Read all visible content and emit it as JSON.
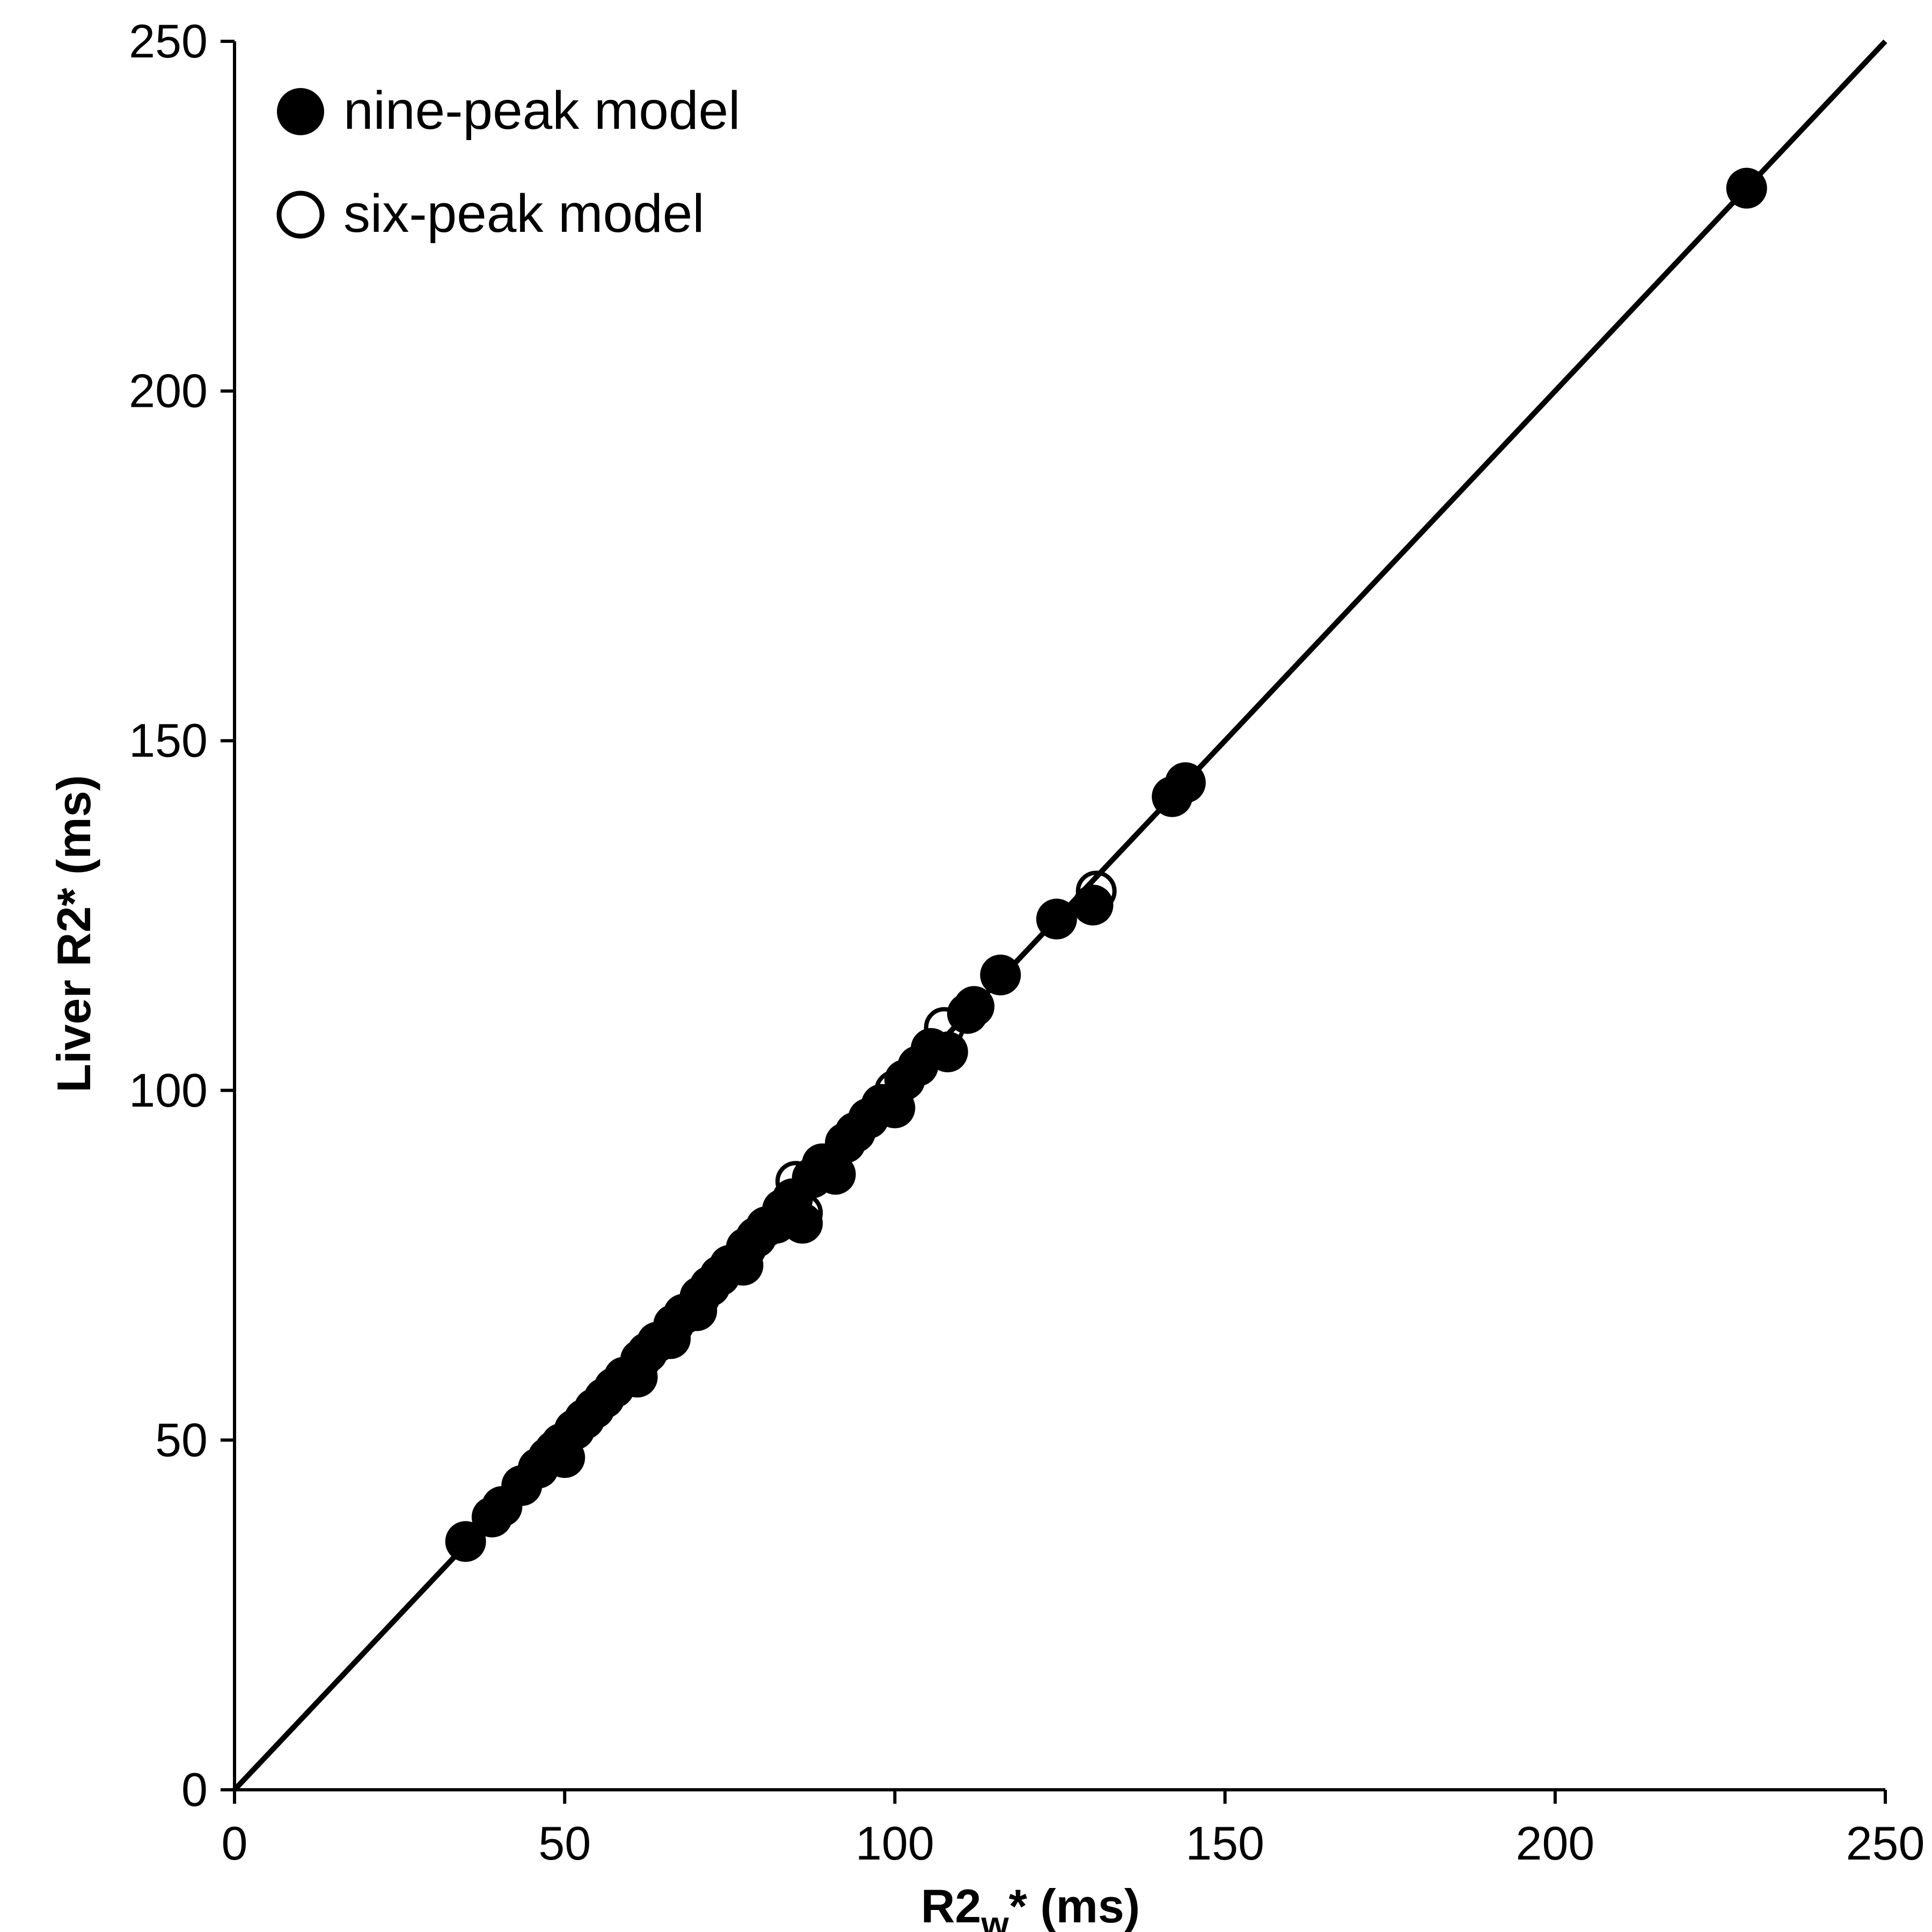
{
  "chart_data": {
    "type": "scatter",
    "title": "",
    "xlabel": {
      "main": "R2",
      "sub": "w",
      "rest": "* (ms)"
    },
    "ylabel": "Liver R2* (ms)",
    "xlim": [
      0,
      250
    ],
    "ylim": [
      0,
      250
    ],
    "xticks": [
      0,
      50,
      100,
      150,
      200,
      250
    ],
    "yticks": [
      0,
      50,
      100,
      150,
      200,
      250
    ],
    "grid": false,
    "legend_position": "top-left",
    "identity_line": true,
    "series": [
      {
        "name": "nine-peak model",
        "marker": "filled-circle",
        "color": "#000000",
        "points": [
          [
            35,
            35.5
          ],
          [
            39,
            39
          ],
          [
            40.5,
            40.5
          ],
          [
            43.5,
            43.5
          ],
          [
            46,
            46
          ],
          [
            47.5,
            47.5
          ],
          [
            48.5,
            48.5
          ],
          [
            49.5,
            49.5
          ],
          [
            50,
            47.5
          ],
          [
            51.5,
            51.5
          ],
          [
            53,
            53
          ],
          [
            54.5,
            54.5
          ],
          [
            56,
            56
          ],
          [
            57.5,
            57.5
          ],
          [
            59,
            59
          ],
          [
            61,
            59
          ],
          [
            61.5,
            61.5
          ],
          [
            62.5,
            62.5
          ],
          [
            64,
            64
          ],
          [
            66,
            64.5
          ],
          [
            66.5,
            66.5
          ],
          [
            68,
            68
          ],
          [
            70,
            68.5
          ],
          [
            70.5,
            70.5
          ],
          [
            72,
            72
          ],
          [
            73.5,
            73.5
          ],
          [
            75,
            75
          ],
          [
            77,
            75
          ],
          [
            77.5,
            77.5
          ],
          [
            79,
            79
          ],
          [
            80.5,
            80.5
          ],
          [
            82,
            81
          ],
          [
            83,
            83
          ],
          [
            84.5,
            84.5
          ],
          [
            86,
            81
          ],
          [
            87.5,
            87.5
          ],
          [
            89,
            89.5
          ],
          [
            91,
            88
          ],
          [
            92.5,
            92.5
          ],
          [
            94,
            94
          ],
          [
            96,
            96
          ],
          [
            98,
            98
          ],
          [
            100,
            97.5
          ],
          [
            101.5,
            101.5
          ],
          [
            103.5,
            103.5
          ],
          [
            105.5,
            106
          ],
          [
            108,
            105.5
          ],
          [
            111,
            111
          ],
          [
            112,
            112
          ],
          [
            116,
            116.5
          ],
          [
            124.5,
            124.5
          ],
          [
            130,
            126.5
          ],
          [
            142,
            142
          ],
          [
            144,
            144
          ],
          [
            229,
            229
          ]
        ]
      },
      {
        "name": "six-peak model",
        "marker": "open-circle",
        "color": "#000000",
        "points": [
          [
            85,
            87
          ],
          [
            86,
            82.5
          ],
          [
            100,
            100
          ],
          [
            107.5,
            109
          ],
          [
            130.5,
            128.5
          ]
        ]
      }
    ]
  }
}
